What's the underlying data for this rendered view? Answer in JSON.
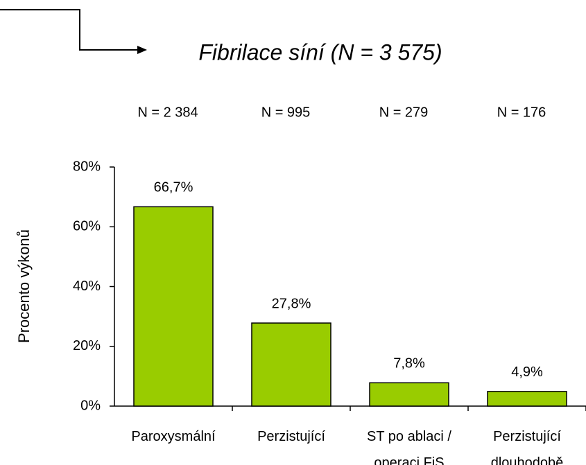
{
  "chart_data": {
    "type": "bar",
    "title": "Fibrilace síní (N = 3 575)",
    "ylabel": "Procento výkonů",
    "n_labels": [
      "N = 2 384",
      "N = 995",
      "N = 279",
      "N = 176"
    ],
    "categories": [
      "Paroxysmální",
      "Perzistující",
      "ST po ablaci / operaci FiS",
      "Perzistující dlouhodobě"
    ],
    "values": [
      66.7,
      27.8,
      7.8,
      4.9
    ],
    "value_labels": [
      "66,7%",
      "27,8%",
      "7,8%",
      "4,9%"
    ],
    "color": "#99cc00",
    "ylim": [
      0,
      80
    ],
    "yticks": [
      {
        "value": 0,
        "label": "0%"
      },
      {
        "value": 20,
        "label": "20%"
      },
      {
        "value": 40,
        "label": "40%"
      },
      {
        "value": 60,
        "label": "60%"
      },
      {
        "value": 80,
        "label": "80%"
      }
    ],
    "grid": false
  }
}
